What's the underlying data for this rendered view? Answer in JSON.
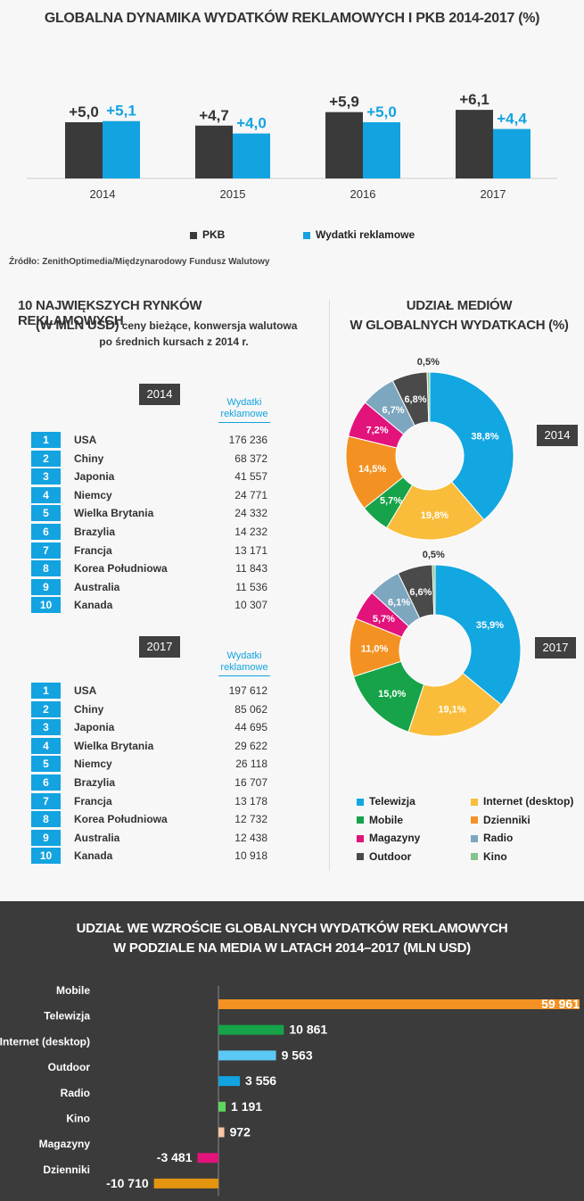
{
  "colors": {
    "pkb": "#3a3a3a",
    "ad": "#13a3e0",
    "telewizja": "#12a7e1",
    "internet": "#f9bd3b",
    "mobile": "#16a349",
    "dzienniki": "#f39223",
    "magazyny": "#e2137b",
    "radio": "#7da7bf",
    "outdoor": "#4a4a4a",
    "kino": "#87c38d"
  },
  "header": {
    "title": "GLOBALNA DYNAMIKA WYDATKÓW REKLAMOWYCH I PKB 2014-2017 (%)",
    "source": "Źródło: ZenithOptimedia/Międzynarodowy  Fundusz Walutowy"
  },
  "chart_data": [
    {
      "type": "bar",
      "title": "GLOBALNA DYNAMIKA WYDATKÓW REKLAMOWYCH I PKB 2014-2017 (%)",
      "categories": [
        "2014",
        "2015",
        "2016",
        "2017"
      ],
      "series": [
        {
          "name": "PKB",
          "values": [
            5.0,
            4.7,
            5.9,
            6.1
          ],
          "labels": [
            "+5,0",
            "+4,7",
            "+5,9",
            "+6,1"
          ]
        },
        {
          "name": "Wydatki reklamowe",
          "values": [
            5.1,
            4.0,
            5.0,
            4.4
          ],
          "labels": [
            "+5,1",
            "+4,0",
            "+5,0",
            "+4,4"
          ]
        }
      ],
      "ylim": [
        0,
        7
      ],
      "legend": "bottom"
    },
    {
      "type": "table",
      "title": "10 NAJWIĘKSZYCH RYNKÓW REKLAMOWYCH",
      "title_line2": "(W MLN USD)",
      "subtitle_a": "ceny bieżące, konwersja walutowa",
      "subtitle_b": "po średnich kursach  z 2014  r.",
      "column_header_a": "Wydatki",
      "column_header_b": "reklamowe",
      "tables": [
        {
          "year": "2014",
          "rows": [
            {
              "rank": "1",
              "country": "USA",
              "value": "176 236"
            },
            {
              "rank": "2",
              "country": "Chiny",
              "value": "68 372"
            },
            {
              "rank": "3",
              "country": "Japonia",
              "value": "41 557"
            },
            {
              "rank": "4",
              "country": "Niemcy",
              "value": "24 771"
            },
            {
              "rank": "5",
              "country": "Wielka Brytania",
              "value": "24 332"
            },
            {
              "rank": "6",
              "country": "Brazylia",
              "value": "14 232"
            },
            {
              "rank": "7",
              "country": "Francja",
              "value": "13 171"
            },
            {
              "rank": "8",
              "country": "Korea Południowa",
              "value": "11 843"
            },
            {
              "rank": "9",
              "country": "Australia",
              "value": "11 536"
            },
            {
              "rank": "10",
              "country": "Kanada",
              "value": "10 307"
            }
          ]
        },
        {
          "year": "2017",
          "rows": [
            {
              "rank": "1",
              "country": "USA",
              "value": "197 612"
            },
            {
              "rank": "2",
              "country": "Chiny",
              "value": "85 062"
            },
            {
              "rank": "3",
              "country": "Japonia",
              "value": "44 695"
            },
            {
              "rank": "4",
              "country": "Wielka Brytania",
              "value": "29 622"
            },
            {
              "rank": "5",
              "country": "Niemcy",
              "value": "26 118"
            },
            {
              "rank": "6",
              "country": "Brazylia",
              "value": "16 707"
            },
            {
              "rank": "7",
              "country": "Francja",
              "value": "13 178"
            },
            {
              "rank": "8",
              "country": "Korea Południowa",
              "value": "12 732"
            },
            {
              "rank": "9",
              "country": "Australia",
              "value": "12 438"
            },
            {
              "rank": "10",
              "country": "Kanada",
              "value": "10 918"
            }
          ]
        }
      ]
    },
    {
      "type": "pie",
      "variant": "donut",
      "title": "UDZIAŁ MEDIÓW",
      "title_line2": "W GLOBALNYCH WYDATKACH (%)",
      "legend": [
        {
          "key": "telewizja",
          "label": "Telewizja"
        },
        {
          "key": "internet",
          "label": "Internet (desktop)"
        },
        {
          "key": "mobile",
          "label": "Mobile"
        },
        {
          "key": "dzienniki",
          "label": "Dzienniki"
        },
        {
          "key": "magazyny",
          "label": "Magazyny"
        },
        {
          "key": "radio",
          "label": "Radio"
        },
        {
          "key": "outdoor",
          "label": "Outdoor"
        },
        {
          "key": "kino",
          "label": "Kino"
        }
      ],
      "donuts": [
        {
          "year": "2014",
          "slices": [
            {
              "key": "telewizja",
              "value": 38.8,
              "label": "38,8%"
            },
            {
              "key": "internet",
              "value": 19.8,
              "label": "19,8%"
            },
            {
              "key": "mobile",
              "value": 5.7,
              "label": "5,7%"
            },
            {
              "key": "dzienniki",
              "value": 14.5,
              "label": "14,5%"
            },
            {
              "key": "magazyny",
              "value": 7.2,
              "label": "7,2%"
            },
            {
              "key": "radio",
              "value": 6.7,
              "label": "6,7%"
            },
            {
              "key": "outdoor",
              "value": 6.8,
              "label": "6,8%"
            },
            {
              "key": "kino",
              "value": 0.5,
              "label": "0,5%"
            }
          ]
        },
        {
          "year": "2017",
          "slices": [
            {
              "key": "telewizja",
              "value": 35.9,
              "label": "35,9%"
            },
            {
              "key": "internet",
              "value": 19.1,
              "label": "19,1%"
            },
            {
              "key": "mobile",
              "value": 15.0,
              "label": "15,0%"
            },
            {
              "key": "dzienniki",
              "value": 11.0,
              "label": "11,0%"
            },
            {
              "key": "magazyny",
              "value": 5.7,
              "label": "5,7%"
            },
            {
              "key": "radio",
              "value": 6.1,
              "label": "6,1%"
            },
            {
              "key": "outdoor",
              "value": 6.6,
              "label": "6,6%"
            },
            {
              "key": "kino",
              "value": 0.5,
              "label": "0,5%"
            }
          ]
        }
      ]
    },
    {
      "type": "bar",
      "orientation": "horizontal",
      "title": "UDZIAŁ WE WZROŚCIE GLOBALNYCH WYDATKÓW REKLAMOWYCH",
      "title_line2": "W PODZIALE NA MEDIA W LATACH 2014–2017 (MLN USD)",
      "categories": [
        "Mobile",
        "Telewizja",
        "Internet (desktop)",
        "Outdoor",
        "Radio",
        "Kino",
        "Magazyny",
        "Dzienniki"
      ],
      "values": [
        59961,
        10861,
        9563,
        3556,
        1191,
        972,
        -3481,
        -10710
      ],
      "labels": [
        "59 961",
        "10 861",
        "9 563",
        "3 556",
        "1 191",
        "972",
        "-3 481",
        "-10 710"
      ],
      "bar_colors": [
        "#f39223",
        "#16a349",
        "#5bc8f5",
        "#13a3e0",
        "#5fd35f",
        "#f6c7a3",
        "#e2137b",
        "#e4940f"
      ]
    }
  ]
}
